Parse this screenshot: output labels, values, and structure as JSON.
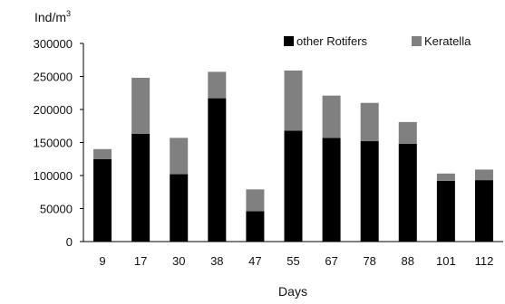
{
  "chart_data": {
    "type": "bar",
    "stacked": true,
    "title": "",
    "ylabel": "Ind/m",
    "ylabel_sup": "3",
    "xlabel": "Days",
    "categories": [
      "9",
      "17",
      "30",
      "38",
      "47",
      "55",
      "67",
      "78",
      "88",
      "101",
      "112"
    ],
    "series": [
      {
        "name": "other Rotifers",
        "color": "#000000",
        "values": [
          125000,
          163000,
          102000,
          217000,
          46000,
          168000,
          157000,
          152000,
          148000,
          92000,
          93000
        ]
      },
      {
        "name": "Keratella",
        "color": "#808080",
        "values": [
          15000,
          85000,
          55000,
          40000,
          33000,
          91000,
          64000,
          58000,
          33000,
          11000,
          16000
        ]
      }
    ],
    "ylim": [
      0,
      300000
    ],
    "yticks": [
      "0",
      "50000",
      "100000",
      "150000",
      "200000",
      "250000",
      "300000"
    ],
    "grid": false,
    "legend_position": "top-right"
  }
}
